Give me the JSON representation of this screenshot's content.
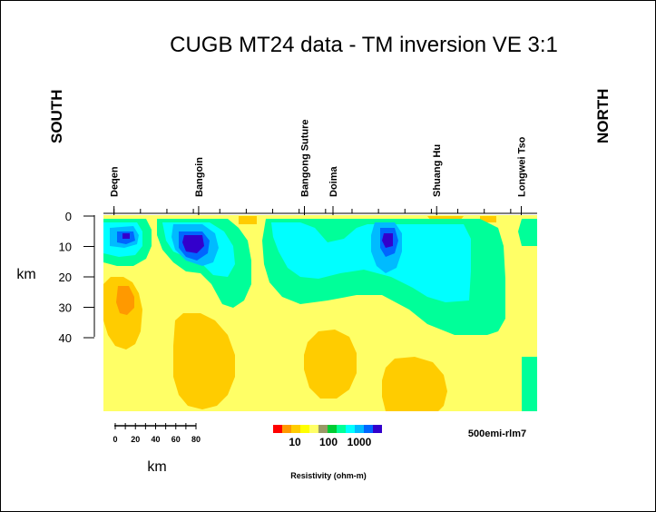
{
  "title": "CUGB MT24 data - TM inversion  VE 3:1",
  "side_labels": {
    "left": "SOUTH",
    "right": "NORTH"
  },
  "model_label": "500emi-rlm7",
  "chart_data": {
    "type": "heatmap",
    "title": "CUGB MT24 data - TM inversion  VE 3:1",
    "ylabel": "km",
    "y_ticks": [
      0,
      10,
      20,
      30,
      40
    ],
    "y_range_km": [
      0,
      40
    ],
    "stations": [
      "Deqen",
      "Bangoin",
      "Bangong Suture",
      "Doima",
      "Shuang Hu",
      "Longwei Tso"
    ],
    "station_positions_km": [
      0,
      80,
      180,
      207,
      305,
      385
    ],
    "scale_bar": {
      "ticks": [
        "0",
        "20",
        "40",
        "60",
        "80"
      ],
      "unit": "km"
    },
    "colorbar": {
      "label": "Resistivity (ohm-m)",
      "tick_labels": [
        "10",
        "100",
        "1000"
      ],
      "colors": [
        "#ff0000",
        "#ff9900",
        "#ffcc00",
        "#ffff00",
        "#ffff66",
        "#999966",
        "#00cc33",
        "#00ff99",
        "#00ffff",
        "#00bbff",
        "#0066ff",
        "#3300cc"
      ]
    },
    "profile_x_range_km": [
      -10,
      400
    ]
  }
}
